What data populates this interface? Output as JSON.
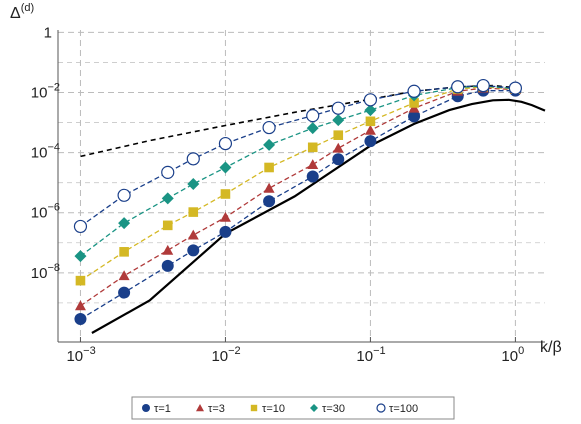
{
  "chart_data": {
    "type": "line",
    "xlabel": "k/β",
    "ylabel": "Δ(d)",
    "ylabel_main": "Δ",
    "ylabel_sup": "(d)",
    "xscale": "log",
    "yscale": "log",
    "xlim": [
      0.0007,
      1.6
    ],
    "ylim": [
      5e-11,
      1.2
    ],
    "grid": true,
    "legend_position": "bottom",
    "x_ticks": [
      {
        "value": 0.001,
        "base": "10",
        "exp": "−3"
      },
      {
        "value": 0.01,
        "base": "10",
        "exp": "−2"
      },
      {
        "value": 0.1,
        "base": "10",
        "exp": "−1"
      },
      {
        "value": 1,
        "base": "10",
        "exp": "0"
      }
    ],
    "y_ticks": [
      {
        "value": 1,
        "base": "1",
        "exp": ""
      },
      {
        "value": 0.01,
        "base": "10",
        "exp": "−2"
      },
      {
        "value": 0.0001,
        "base": "10",
        "exp": "−4"
      },
      {
        "value": 1e-06,
        "base": "10",
        "exp": "−6"
      },
      {
        "value": 1e-08,
        "base": "10",
        "exp": "−8"
      }
    ],
    "x": [
      0.001,
      0.002,
      0.004,
      0.006,
      0.01,
      0.02,
      0.04,
      0.06,
      0.1,
      0.2,
      0.4,
      0.6,
      1.0
    ],
    "series": [
      {
        "name": "τ=1",
        "marker": "circle-filled",
        "color": "#1a3f8a",
        "values": [
          2.9e-10,
          2.2e-09,
          1.7e-08,
          5.6e-08,
          2.3e-07,
          2.4e-06,
          1.6e-05,
          6e-05,
          0.00024,
          0.0016,
          0.0075,
          0.0115,
          0.0115
        ]
      },
      {
        "name": "τ=3",
        "marker": "triangle",
        "color": "#b03a3a",
        "values": [
          8e-10,
          8e-09,
          5.6e-08,
          1.8e-07,
          7e-07,
          6.5e-06,
          4e-05,
          0.00014,
          0.00055,
          0.003,
          0.011,
          0.014,
          0.0125
        ]
      },
      {
        "name": "τ=10",
        "marker": "square",
        "color": "#d4b824",
        "values": [
          5.5e-09,
          5e-08,
          3.8e-07,
          1.05e-06,
          4.2e-06,
          3.2e-05,
          0.00015,
          0.00038,
          0.0011,
          0.0045,
          0.013,
          0.0155,
          0.013
        ]
      },
      {
        "name": "τ=30",
        "marker": "diamond",
        "color": "#1a9484",
        "values": [
          3.6e-08,
          4.5e-07,
          3e-06,
          9e-06,
          3.2e-05,
          0.00018,
          0.00065,
          0.0012,
          0.0026,
          0.008,
          0.0145,
          0.0165,
          0.0135
        ]
      },
      {
        "name": "τ=100",
        "marker": "circle-open",
        "color": "#1a3f8a",
        "values": [
          3.5e-07,
          3.8e-06,
          2.2e-05,
          6.2e-05,
          0.0002,
          0.00068,
          0.0017,
          0.003,
          0.0057,
          0.011,
          0.0155,
          0.017,
          0.014
        ]
      }
    ],
    "reference_curves": [
      {
        "style": "solid",
        "color": "#000000",
        "x": [
          0.0012,
          0.003,
          0.01,
          0.03,
          0.1,
          0.2,
          0.35,
          0.5,
          0.7,
          0.9,
          1.1,
          1.3,
          1.6
        ],
        "y": [
          1e-10,
          1.2e-09,
          2e-07,
          3.5e-06,
          0.00017,
          0.0009,
          0.0026,
          0.0041,
          0.0055,
          0.0057,
          0.0049,
          0.0038,
          0.0025
        ]
      },
      {
        "style": "dashed",
        "color": "#000000",
        "x": [
          0.001,
          0.003,
          0.01,
          0.03,
          0.1,
          0.2,
          0.4,
          0.7,
          1.0
        ],
        "y": [
          7.5e-05,
          0.00025,
          0.0008,
          0.0022,
          0.006,
          0.011,
          0.0155,
          0.017,
          0.0145
        ]
      }
    ]
  }
}
